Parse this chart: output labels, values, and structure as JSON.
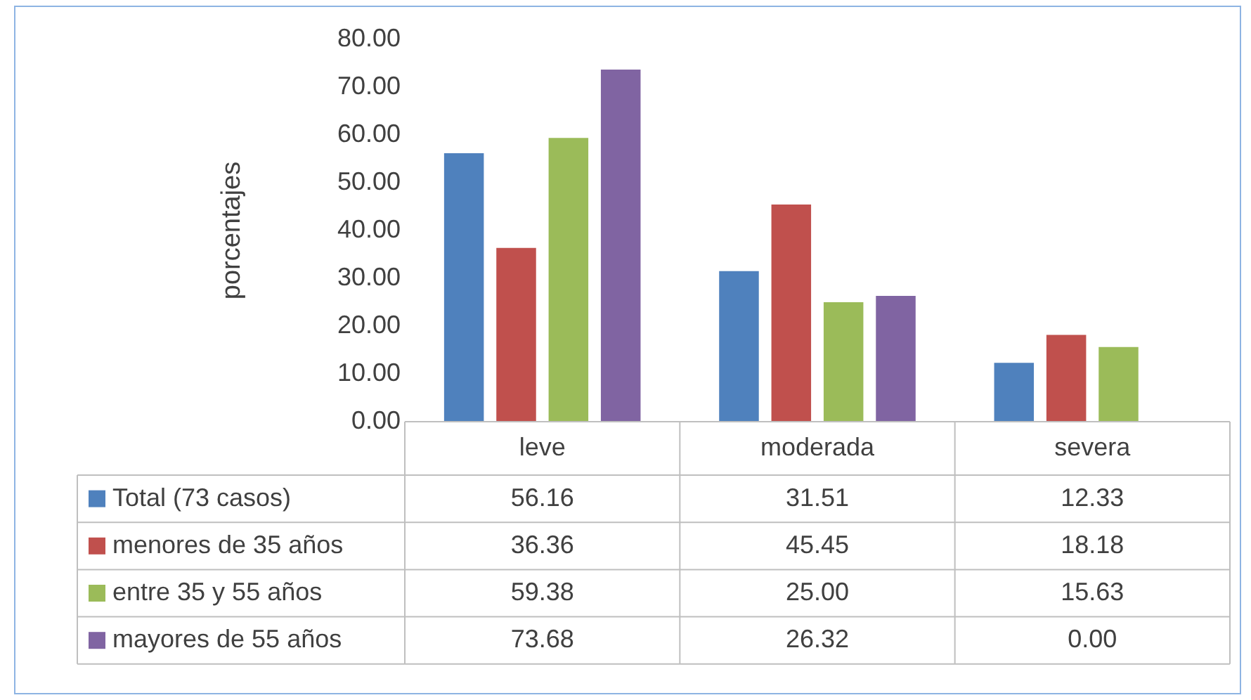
{
  "chart_data": {
    "type": "bar",
    "ylabel": "porcentajes",
    "categories": [
      "leve",
      "moderada",
      "severa"
    ],
    "series": [
      {
        "name": "Total (73 casos)",
        "color": "#4f81bd",
        "values": [
          56.16,
          31.51,
          12.33
        ],
        "value_labels": [
          "56.16",
          "31.51",
          "12.33"
        ]
      },
      {
        "name": "menores de 35 años",
        "color": "#c0504d",
        "values": [
          36.36,
          45.45,
          18.18
        ],
        "value_labels": [
          "36.36",
          "45.45",
          "18.18"
        ]
      },
      {
        "name": "entre 35 y 55 años",
        "color": "#9bbb59",
        "values": [
          59.38,
          25.0,
          15.63
        ],
        "value_labels": [
          "59.38",
          "25.00",
          "15.63"
        ]
      },
      {
        "name": "mayores de 55 años",
        "color": "#8064a2",
        "values": [
          73.68,
          26.32,
          0.0
        ],
        "value_labels": [
          "73.68",
          "26.32",
          "0.00"
        ]
      }
    ],
    "ylim": [
      0,
      80
    ],
    "yticks": [
      {
        "value": 0,
        "label": "0.00"
      },
      {
        "value": 10,
        "label": "10.00"
      },
      {
        "value": 20,
        "label": "20.00"
      },
      {
        "value": 30,
        "label": "30.00"
      },
      {
        "value": 40,
        "label": "40.00"
      },
      {
        "value": 50,
        "label": "50.00"
      },
      {
        "value": 60,
        "label": "60.00"
      },
      {
        "value": 70,
        "label": "70.00"
      },
      {
        "value": 80,
        "label": "80.00"
      }
    ],
    "legend": "bottom",
    "grid": false
  }
}
